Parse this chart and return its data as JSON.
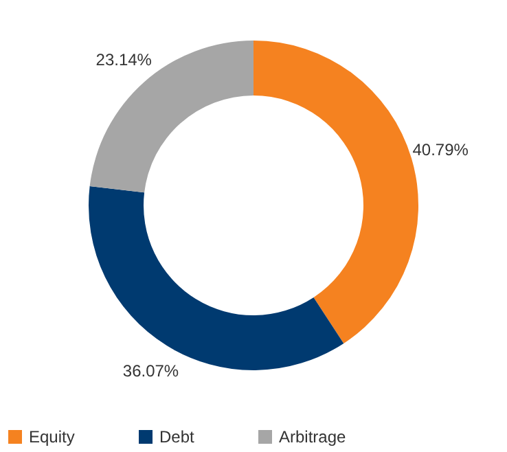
{
  "chart_data": {
    "type": "donut",
    "categories": [
      "Equity",
      "Debt",
      "Arbitrage"
    ],
    "values": [
      40.79,
      36.07,
      23.14
    ],
    "colors": [
      "#f58220",
      "#003a70",
      "#a6a6a6"
    ],
    "value_labels": [
      "40.79%",
      "36.07%",
      "23.14%"
    ],
    "legend": "bottom"
  }
}
